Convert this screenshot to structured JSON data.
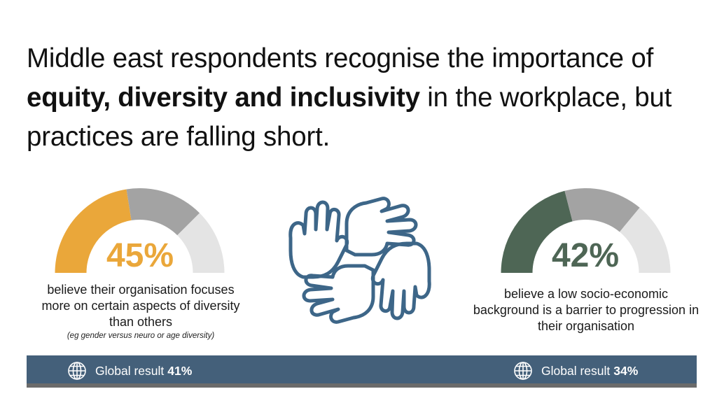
{
  "headline": {
    "part1": "Middle east respondents recognise the importance of ",
    "emphasis": "equity, diversity and inclusivity",
    "part2": " in the workplace, but practices are falling short."
  },
  "left_stat": {
    "value": "45%",
    "fraction": 0.45,
    "color": "#eaa73a",
    "text": "believe their organisation focuses more on certain aspects of diversity than others",
    "note": "(eg gender versus neuro or age diversity)"
  },
  "right_stat": {
    "value": "42%",
    "fraction": 0.42,
    "color": "#4e6655",
    "text": "believe a low socio-economic background is a barrier to progression in their organisation"
  },
  "global_left": {
    "label": "Global result",
    "value": "41%",
    "icon": "globe-icon"
  },
  "global_right": {
    "label": "Global result",
    "value": "34%",
    "icon": "globe-icon"
  },
  "illustration": {
    "icon": "linked-hands-icon",
    "color": "#3d6688"
  },
  "colors": {
    "mid_gray": "#a3a3a3",
    "light_gray": "#e4e4e4",
    "bar": "#44607a"
  }
}
